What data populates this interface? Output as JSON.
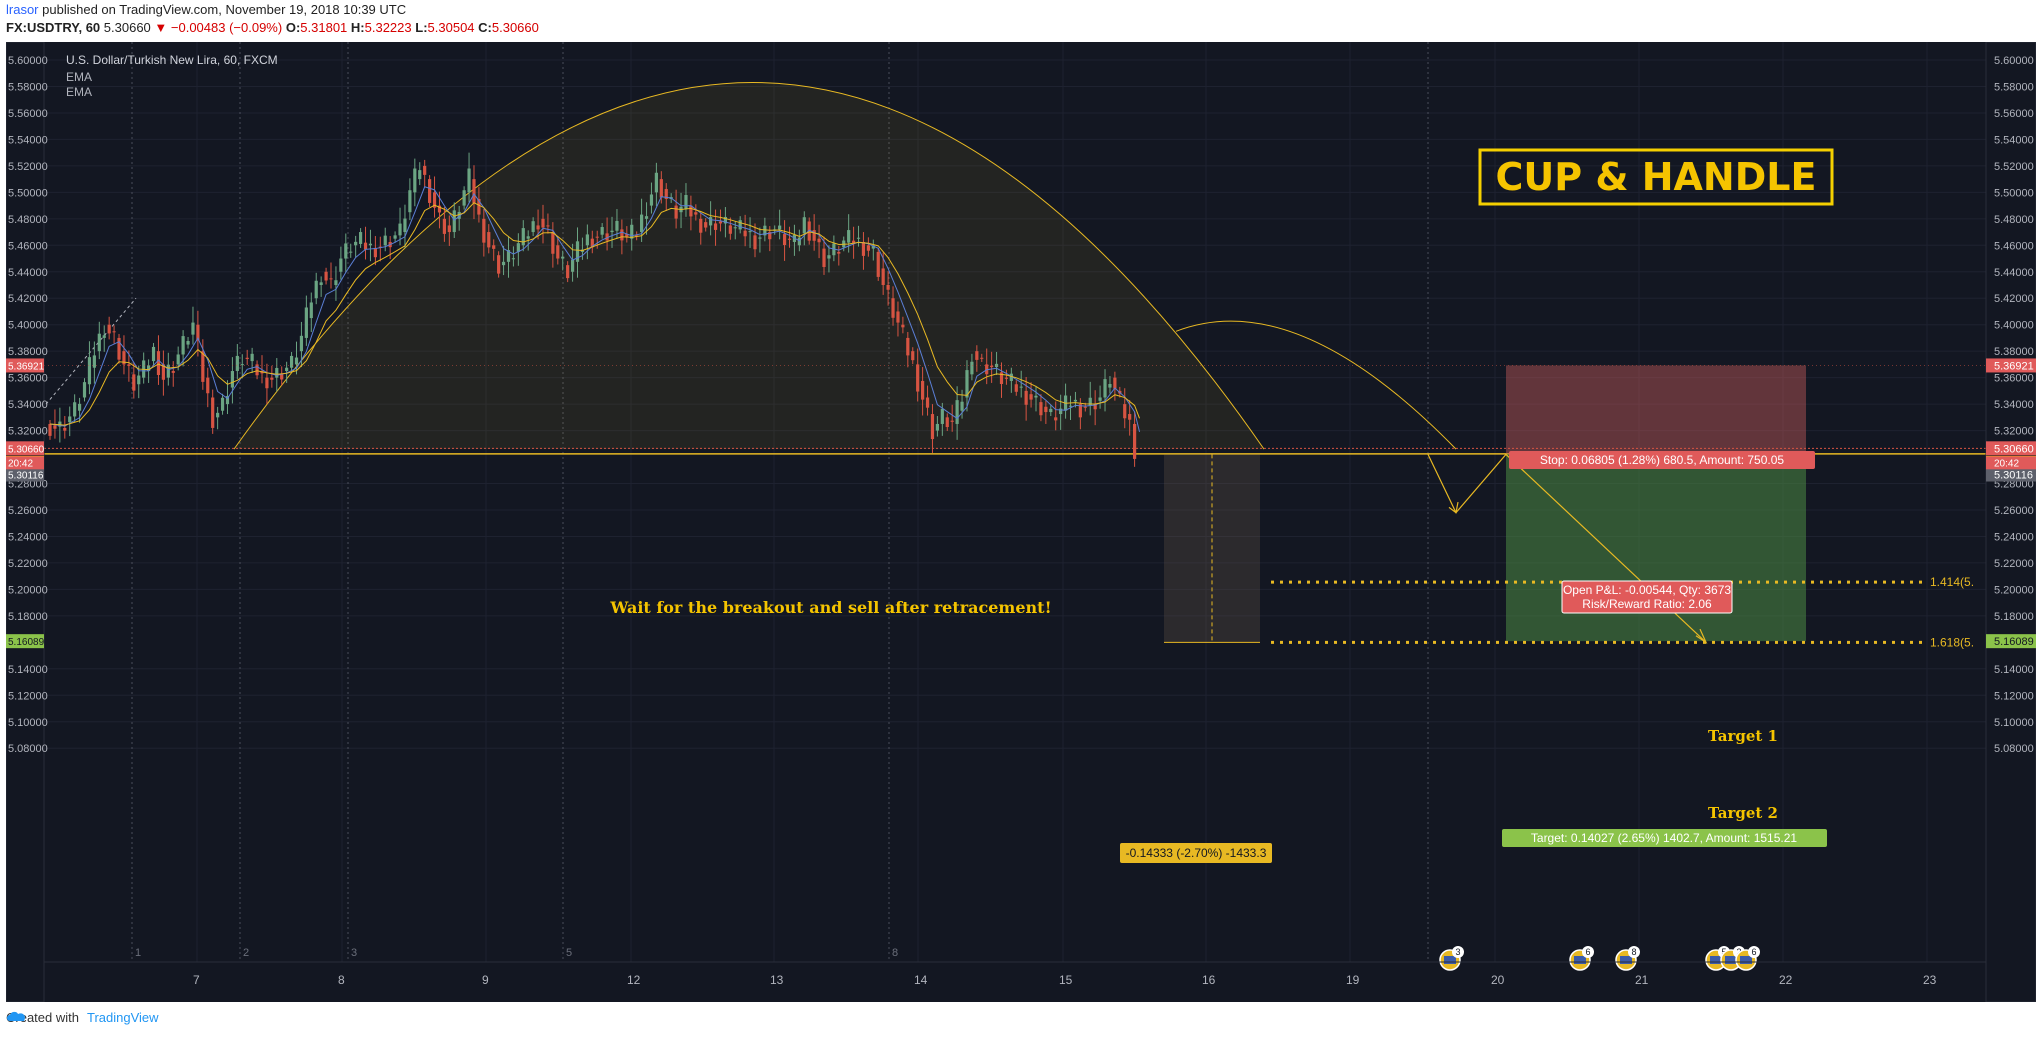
{
  "header": {
    "author": "lrasor",
    "published_text": "published on TradingView.com, November 19, 2018 10:39 UTC",
    "symbol": "FX:USDTRY, 60",
    "last": "5.30660",
    "change": "▼ −0.00483 (−0.09%)",
    "o_label": "O:",
    "o_val": "5.31801",
    "h_label": "H:",
    "h_val": "5.32223",
    "l_label": "L:",
    "l_val": "5.30504",
    "c_label": "C:",
    "c_val": "5.30660"
  },
  "legend": {
    "title": "U.S. Dollar/Turkish New Lira, 60, FXCM",
    "ind1": "EMA",
    "ind2": "EMA"
  },
  "annotations": {
    "pattern_title": "CUP & HANDLE",
    "wait_text": "Wait for the breakout and sell after retracement!",
    "target1": "Target 1",
    "target2": "Target 2",
    "fib1": "1.414(5.",
    "fib2": "1.618(5.",
    "stop_box": "Stop: 0.06805 (1.28%) 680.5, Amount: 750.05",
    "pnl_line1": "Open P&L: -0.00544, Qty: 3673",
    "pnl_line2": "Risk/Reward Ratio: 2.06",
    "target_box": "Target: 0.14027 (2.65%) 1402.7, Amount: 1515.21",
    "measure_box": "-0.14333 (-2.70%) -1433.3",
    "countdown": "20:42",
    "session_numbers": [
      "1",
      "2",
      "3",
      "5",
      "8"
    ],
    "event_counts": [
      "3",
      "6",
      "8",
      "5",
      "2",
      "6"
    ]
  },
  "price_labels": {
    "stop": "5.36921",
    "last": "5.30660",
    "entry": "5.30238",
    "gray": "5.30116",
    "target": "5.16089"
  },
  "colors": {
    "background": "#131722",
    "up": "#6ba583",
    "down": "#d75442",
    "annotation": "#e8b923",
    "stop_zone": "#c45a5a",
    "target_zone": "#4c8a43"
  },
  "chart_data": {
    "type": "candlestick",
    "title": "U.S. Dollar/Turkish New Lira, 60, FXCM",
    "x_ticks": [
      "7",
      "8",
      "9",
      "12",
      "13",
      "14",
      "15",
      "16",
      "19",
      "20",
      "21",
      "22",
      "23"
    ],
    "y_ticks": [
      "5.60000",
      "5.58000",
      "5.56000",
      "5.54000",
      "5.52000",
      "5.50000",
      "5.48000",
      "5.46000",
      "5.44000",
      "5.42000",
      "5.40000",
      "5.38000",
      "5.36000",
      "5.34000",
      "5.32000",
      "5.28000",
      "5.26000",
      "5.24000",
      "5.22000",
      "5.20000",
      "5.18000",
      "5.14000",
      "5.12000",
      "5.10000",
      "5.08000"
    ],
    "ylim": [
      5.0765,
      5.6125
    ],
    "grid": true,
    "price_path": [
      [
        0,
        5.325
      ],
      [
        3,
        5.322
      ],
      [
        6,
        5.335
      ],
      [
        8,
        5.355
      ],
      [
        10,
        5.38
      ],
      [
        12,
        5.4
      ],
      [
        14,
        5.39
      ],
      [
        16,
        5.37
      ],
      [
        18,
        5.355
      ],
      [
        20,
        5.365
      ],
      [
        22,
        5.38
      ],
      [
        24,
        5.36
      ],
      [
        26,
        5.37
      ],
      [
        28,
        5.385
      ],
      [
        30,
        5.4
      ],
      [
        32,
        5.36
      ],
      [
        34,
        5.33
      ],
      [
        36,
        5.34
      ],
      [
        38,
        5.365
      ],
      [
        40,
        5.375
      ],
      [
        42,
        5.37
      ],
      [
        44,
        5.36
      ],
      [
        46,
        5.36
      ],
      [
        48,
        5.365
      ],
      [
        50,
        5.37
      ],
      [
        52,
        5.39
      ],
      [
        54,
        5.42
      ],
      [
        56,
        5.44
      ],
      [
        58,
        5.43
      ],
      [
        60,
        5.45
      ],
      [
        62,
        5.46
      ],
      [
        64,
        5.462
      ],
      [
        66,
        5.458
      ],
      [
        68,
        5.46
      ],
      [
        70,
        5.465
      ],
      [
        72,
        5.47
      ],
      [
        74,
        5.5
      ],
      [
        76,
        5.52
      ],
      [
        78,
        5.5
      ],
      [
        80,
        5.48
      ],
      [
        82,
        5.47
      ],
      [
        84,
        5.49
      ],
      [
        86,
        5.51
      ],
      [
        88,
        5.48
      ],
      [
        90,
        5.46
      ],
      [
        92,
        5.445
      ],
      [
        94,
        5.45
      ],
      [
        96,
        5.46
      ],
      [
        98,
        5.47
      ],
      [
        100,
        5.48
      ],
      [
        102,
        5.47
      ],
      [
        104,
        5.45
      ],
      [
        106,
        5.44
      ],
      [
        108,
        5.455
      ],
      [
        110,
        5.465
      ],
      [
        112,
        5.468
      ],
      [
        114,
        5.47
      ],
      [
        116,
        5.472
      ],
      [
        118,
        5.465
      ],
      [
        120,
        5.47
      ],
      [
        122,
        5.49
      ],
      [
        124,
        5.51
      ],
      [
        126,
        5.495
      ],
      [
        128,
        5.485
      ],
      [
        130,
        5.49
      ],
      [
        132,
        5.48
      ],
      [
        134,
        5.475
      ],
      [
        136,
        5.478
      ],
      [
        138,
        5.475
      ],
      [
        140,
        5.472
      ],
      [
        142,
        5.47
      ],
      [
        144,
        5.465
      ],
      [
        146,
        5.47
      ],
      [
        148,
        5.472
      ],
      [
        150,
        5.465
      ],
      [
        152,
        5.46
      ],
      [
        154,
        5.478
      ],
      [
        156,
        5.465
      ],
      [
        158,
        5.45
      ],
      [
        160,
        5.455
      ],
      [
        162,
        5.462
      ],
      [
        164,
        5.465
      ],
      [
        166,
        5.46
      ],
      [
        168,
        5.455
      ],
      [
        170,
        5.43
      ],
      [
        172,
        5.41
      ],
      [
        174,
        5.39
      ],
      [
        176,
        5.37
      ],
      [
        178,
        5.345
      ],
      [
        180,
        5.32
      ],
      [
        182,
        5.33
      ],
      [
        184,
        5.325
      ],
      [
        186,
        5.345
      ],
      [
        188,
        5.38
      ],
      [
        190,
        5.37
      ],
      [
        192,
        5.368
      ],
      [
        194,
        5.36
      ],
      [
        196,
        5.355
      ],
      [
        198,
        5.35
      ],
      [
        200,
        5.345
      ],
      [
        202,
        5.338
      ],
      [
        204,
        5.33
      ],
      [
        206,
        5.335
      ],
      [
        208,
        5.342
      ],
      [
        210,
        5.338
      ],
      [
        212,
        5.34
      ],
      [
        214,
        5.345
      ],
      [
        216,
        5.36
      ],
      [
        218,
        5.34
      ],
      [
        220,
        5.325
      ],
      [
        221,
        5.3066
      ]
    ]
  }
}
